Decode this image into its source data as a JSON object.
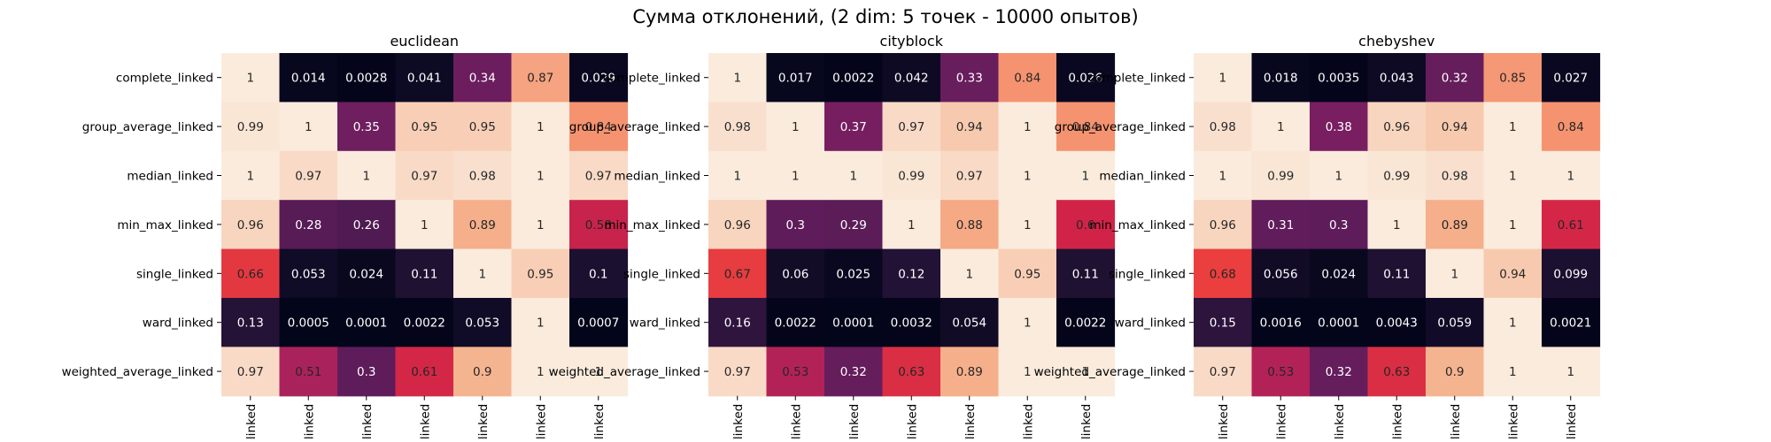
{
  "title": "Сумма отклонений, (2 dim: 5 точек - 10000 опытов)",
  "chart_data": [
    {
      "type": "heatmap",
      "title": "euclidean",
      "rows": [
        "complete_linked",
        "group_average_linked",
        "median_linked",
        "min_max_linked",
        "single_linked",
        "ward_linked",
        "weighted_average_linked"
      ],
      "columns": [
        "linked",
        "linked",
        "linked",
        "linked",
        "linked",
        "linked",
        "linked"
      ],
      "values": [
        [
          "1",
          "0.014",
          "0.0028",
          "0.041",
          "0.34",
          "0.87",
          "0.029"
        ],
        [
          "0.99",
          "1",
          "0.35",
          "0.95",
          "0.95",
          "1",
          "0.84"
        ],
        [
          "1",
          "0.97",
          "1",
          "0.97",
          "0.98",
          "1",
          "0.97"
        ],
        [
          "0.96",
          "0.28",
          "0.26",
          "1",
          "0.89",
          "1",
          "0.58"
        ],
        [
          "0.66",
          "0.053",
          "0.024",
          "0.11",
          "1",
          "0.95",
          "0.1"
        ],
        [
          "0.13",
          "0.0005",
          "0.0001",
          "0.0022",
          "0.053",
          "1",
          "0.0007"
        ],
        [
          "0.97",
          "0.51",
          "0.3",
          "0.61",
          "0.9",
          "1",
          "1"
        ]
      ],
      "value_range": [
        0,
        1
      ],
      "colormap": "rocket"
    },
    {
      "type": "heatmap",
      "title": "cityblock",
      "rows": [
        "complete_linked",
        "group_average_linked",
        "median_linked",
        "min_max_linked",
        "single_linked",
        "ward_linked",
        "weighted_average_linked"
      ],
      "columns": [
        "linked",
        "linked",
        "linked",
        "linked",
        "linked",
        "linked",
        "linked"
      ],
      "values": [
        [
          "1",
          "0.017",
          "0.0022",
          "0.042",
          "0.33",
          "0.84",
          "0.026"
        ],
        [
          "0.98",
          "1",
          "0.37",
          "0.97",
          "0.94",
          "1",
          "0.84"
        ],
        [
          "1",
          "1",
          "1",
          "0.99",
          "0.97",
          "1",
          "1"
        ],
        [
          "0.96",
          "0.3",
          "0.29",
          "1",
          "0.88",
          "1",
          "0.6"
        ],
        [
          "0.67",
          "0.06",
          "0.025",
          "0.12",
          "1",
          "0.95",
          "0.11"
        ],
        [
          "0.16",
          "0.0022",
          "0.0001",
          "0.0032",
          "0.054",
          "1",
          "0.0022"
        ],
        [
          "0.97",
          "0.53",
          "0.32",
          "0.63",
          "0.89",
          "1",
          "1"
        ]
      ],
      "value_range": [
        0,
        1
      ],
      "colormap": "rocket"
    },
    {
      "type": "heatmap",
      "title": "chebyshev",
      "rows": [
        "complete_linked",
        "group_average_linked",
        "median_linked",
        "min_max_linked",
        "single_linked",
        "ward_linked",
        "weighted_average_linked"
      ],
      "columns": [
        "linked",
        "linked",
        "linked",
        "linked",
        "linked",
        "linked",
        "linked"
      ],
      "values": [
        [
          "1",
          "0.018",
          "0.0035",
          "0.043",
          "0.32",
          "0.85",
          "0.027"
        ],
        [
          "0.98",
          "1",
          "0.38",
          "0.96",
          "0.94",
          "1",
          "0.84"
        ],
        [
          "1",
          "0.99",
          "1",
          "0.99",
          "0.98",
          "1",
          "1"
        ],
        [
          "0.96",
          "0.31",
          "0.3",
          "1",
          "0.89",
          "1",
          "0.61"
        ],
        [
          "0.68",
          "0.056",
          "0.024",
          "0.11",
          "1",
          "0.94",
          "0.099"
        ],
        [
          "0.15",
          "0.0016",
          "0.0001",
          "0.0043",
          "0.059",
          "1",
          "0.0021"
        ],
        [
          "0.97",
          "0.53",
          "0.32",
          "0.63",
          "0.9",
          "1",
          "1"
        ]
      ],
      "value_range": [
        0,
        1
      ],
      "colormap": "rocket"
    }
  ]
}
